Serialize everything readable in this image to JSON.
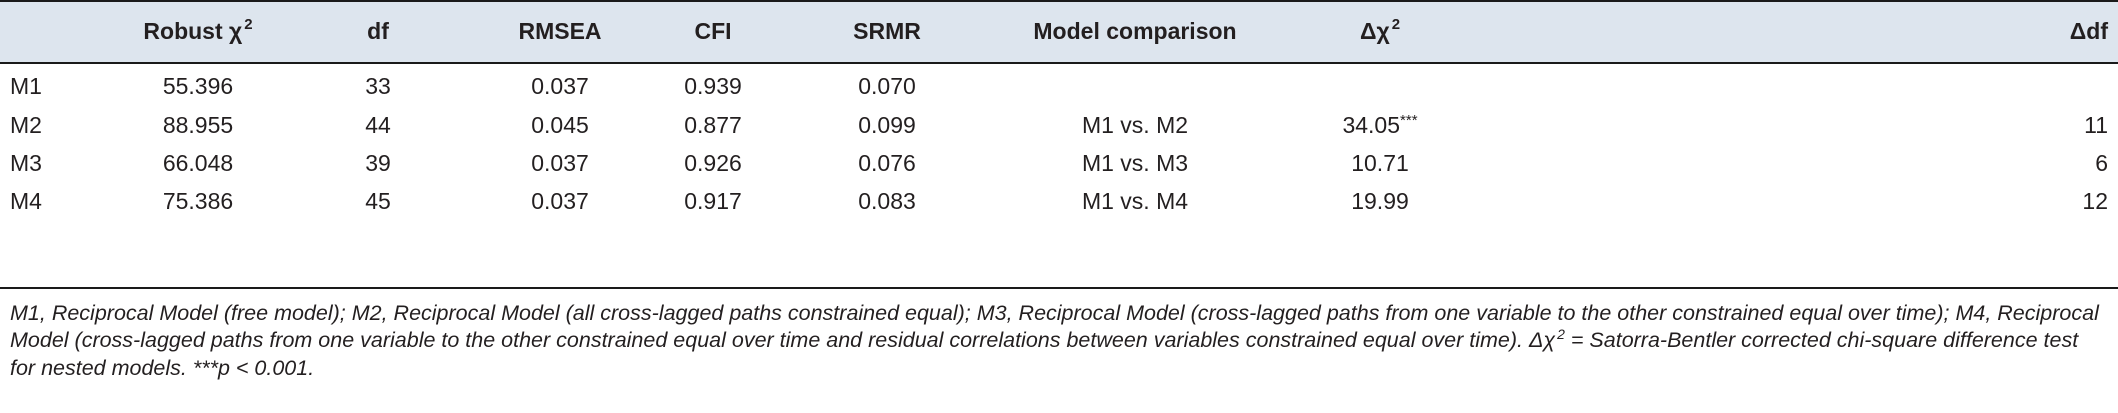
{
  "table": {
    "columns": {
      "model": "",
      "chi_sq": "Robust χ",
      "chi_sq_sup": "2",
      "df": "df",
      "rmsea": "RMSEA",
      "cfi": "CFI",
      "srmr": "SRMR",
      "comparison": "Model comparison",
      "delta_chi": "Δχ",
      "delta_chi_sup": "2",
      "delta_df": "Δdf"
    },
    "rows": [
      {
        "model": "M1",
        "chi_sq": "55.396",
        "df": "33",
        "rmsea": "0.037",
        "cfi": "0.939",
        "srmr": "0.070",
        "comparison": "",
        "delta_chi": "",
        "stars": "",
        "delta_df": ""
      },
      {
        "model": "M2",
        "chi_sq": "88.955",
        "df": "44",
        "rmsea": "0.045",
        "cfi": "0.877",
        "srmr": "0.099",
        "comparison": "M1 vs. M2",
        "delta_chi": "34.05",
        "stars": "***",
        "delta_df": "11"
      },
      {
        "model": "M3",
        "chi_sq": "66.048",
        "df": "39",
        "rmsea": "0.037",
        "cfi": "0.926",
        "srmr": "0.076",
        "comparison": "M1 vs. M3",
        "delta_chi": "10.71",
        "stars": "",
        "delta_df": "6"
      },
      {
        "model": "M4",
        "chi_sq": "75.386",
        "df": "45",
        "rmsea": "0.037",
        "cfi": "0.917",
        "srmr": "0.083",
        "comparison": "M1 vs. M4",
        "delta_chi": "19.99",
        "stars": "",
        "delta_df": "12"
      }
    ]
  },
  "footnote": {
    "text_before": "M1, Reciprocal Model (free model); M2, Reciprocal Model (all cross-lagged paths constrained equal); M3, Reciprocal Model (cross-lagged paths from one variable to the other constrained equal over time); M4, Reciprocal Model (cross-lagged paths from one variable to the other constrained equal over time and residual correlations between variables constrained equal over time). Δχ",
    "sup": "2",
    "text_after": " = Satorra-Bentler corrected chi-square difference test for nested models. ***p < 0.001."
  },
  "colors": {
    "header_band": "#dde5ee",
    "rules": "#1a1a1a",
    "text": "#231f20"
  }
}
